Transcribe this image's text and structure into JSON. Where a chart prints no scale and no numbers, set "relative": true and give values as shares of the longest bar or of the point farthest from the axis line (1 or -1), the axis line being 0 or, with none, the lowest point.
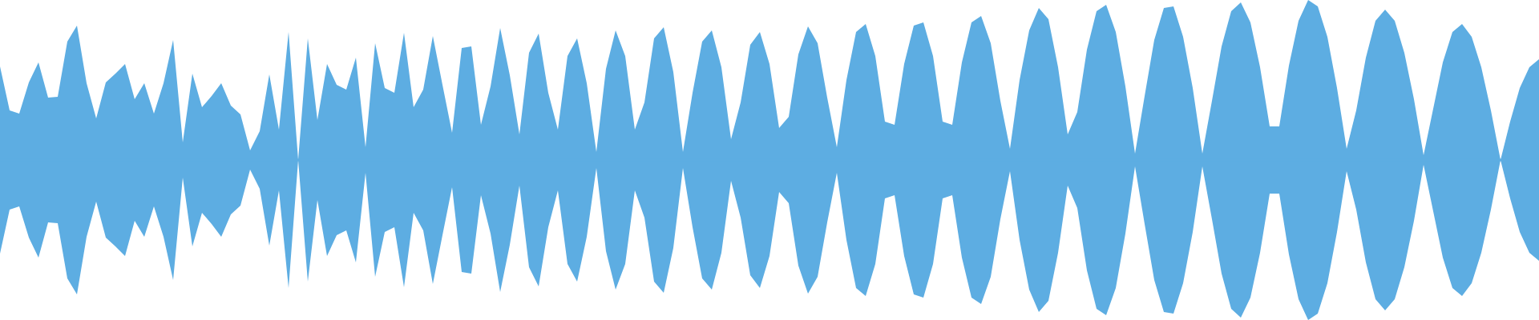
{
  "chart_data": {
    "type": "area",
    "relative": true,
    "tick_labels": false,
    "ref_lines": [
      {
        "axis": "y",
        "value": 0,
        "color": "#5dade2"
      }
    ],
    "categories": [
      null,
      null,
      null,
      null,
      null,
      null,
      null,
      null,
      null,
      null,
      null,
      null,
      null,
      null,
      null,
      null,
      null,
      null,
      null,
      null,
      null,
      null,
      null,
      null,
      null,
      null,
      null,
      null,
      null,
      null,
      null,
      null,
      null,
      null,
      null,
      null,
      null,
      null,
      null,
      null,
      null,
      null,
      null,
      null,
      null,
      null,
      null,
      null,
      null,
      null,
      null,
      null,
      null,
      null,
      null,
      null,
      null,
      null,
      null,
      null,
      null,
      null,
      null,
      null,
      null,
      null,
      null,
      null,
      null,
      null,
      null,
      null,
      null,
      null,
      null,
      null,
      null,
      null,
      null,
      null,
      null,
      null,
      null,
      null,
      null,
      null,
      null,
      null,
      null,
      null,
      null,
      null,
      null,
      null,
      null,
      null,
      null,
      null,
      null,
      null,
      null,
      null,
      null,
      null,
      null,
      null,
      null,
      null,
      null,
      null,
      null,
      null,
      null,
      null,
      null,
      null,
      null,
      null,
      null,
      null,
      null,
      null,
      null,
      null,
      null,
      null,
      null,
      null,
      null,
      null,
      null,
      null,
      null,
      null,
      null,
      null,
      null,
      null,
      null,
      null,
      null,
      null,
      null,
      null,
      null,
      null,
      null,
      null,
      null,
      null,
      null,
      null,
      null,
      null,
      null,
      null,
      null,
      null,
      null,
      null,
      null
    ],
    "series": [
      {
        "color": "#5dade2",
        "values": [
          0.585,
          0.31,
          0.29,
          0.485,
          0.61,
          0.39,
          0.395,
          0.74,
          0.84,
          0.48,
          0.26,
          0.485,
          0.54,
          0.6,
          0.38,
          0.48,
          0.29,
          0.48,
          0.75,
          0.11,
          0.54,
          0.33,
          0.4,
          0.48,
          0.34,
          0.285,
          0.06,
          0.18,
          0.535,
          0.19,
          0.8,
          0,
          0.76,
          0.25,
          0.6,
          0.47,
          0.44,
          0.64,
          0.08,
          0.73,
          0.45,
          0.42,
          0.795,
          0.33,
          0.44,
          0.775,
          0.47,
          0.17,
          0.7,
          0.71,
          0.22,
          0.46,
          0.825,
          0.53,
          0.16,
          0.67,
          0.79,
          0.42,
          0.19,
          0.65,
          0.76,
          0.48,
          0.05,
          0.57,
          0.81,
          0.65,
          0.19,
          0.36,
          0.76,
          0.83,
          0.55,
          0.05,
          0.42,
          0.74,
          0.81,
          0.58,
          0.13,
          0.36,
          0.72,
          0.8,
          0.6,
          0.2,
          0.27,
          0.66,
          0.835,
          0.73,
          0.39,
          0.08,
          0.5,
          0.8,
          0.85,
          0.65,
          0.24,
          0.22,
          0.6,
          0.84,
          0.86,
          0.65,
          0.24,
          0.22,
          0.61,
          0.86,
          0.9,
          0.73,
          0.37,
          0.07,
          0.5,
          0.81,
          0.95,
          0.88,
          0.58,
          0.16,
          0.3,
          0.69,
          0.93,
          0.97,
          0.8,
          0.46,
          0.04,
          0.4,
          0.75,
          0.95,
          0.96,
          0.77,
          0.45,
          0.04,
          0.37,
          0.71,
          0.93,
          0.985,
          0.86,
          0.58,
          0.21,
          0.21,
          0.59,
          0.87,
          1,
          0.96,
          0.77,
          0.45,
          0.07,
          0.31,
          0.64,
          0.87,
          0.94,
          0.87,
          0.67,
          0.38,
          0.03,
          0.32,
          0.61,
          0.8,
          0.85,
          0.77,
          0.58,
          0.31,
          0,
          0.24,
          0.45,
          0.58,
          0.63
        ]
      },
      {
        "color": "#5dade2",
        "values": [
          -0.585,
          -0.31,
          -0.29,
          -0.485,
          -0.61,
          -0.39,
          -0.395,
          -0.74,
          -0.84,
          -0.48,
          -0.26,
          -0.485,
          -0.54,
          -0.6,
          -0.38,
          -0.48,
          -0.29,
          -0.48,
          -0.75,
          -0.11,
          -0.54,
          -0.33,
          -0.4,
          -0.48,
          -0.34,
          -0.285,
          -0.06,
          -0.18,
          -0.535,
          -0.19,
          -0.8,
          0,
          -0.76,
          -0.25,
          -0.6,
          -0.47,
          -0.44,
          -0.64,
          -0.08,
          -0.73,
          -0.45,
          -0.42,
          -0.795,
          -0.33,
          -0.44,
          -0.775,
          -0.47,
          -0.17,
          -0.7,
          -0.71,
          -0.22,
          -0.46,
          -0.825,
          -0.53,
          -0.16,
          -0.67,
          -0.79,
          -0.42,
          -0.19,
          -0.65,
          -0.76,
          -0.48,
          -0.05,
          -0.57,
          -0.81,
          -0.65,
          -0.19,
          -0.36,
          -0.76,
          -0.83,
          -0.55,
          -0.05,
          -0.42,
          -0.74,
          -0.81,
          -0.58,
          -0.13,
          -0.36,
          -0.72,
          -0.8,
          -0.6,
          -0.2,
          -0.27,
          -0.66,
          -0.835,
          -0.73,
          -0.39,
          -0.08,
          -0.5,
          -0.8,
          -0.85,
          -0.65,
          -0.24,
          -0.22,
          -0.6,
          -0.84,
          -0.86,
          -0.65,
          -0.24,
          -0.22,
          -0.61,
          -0.86,
          -0.9,
          -0.73,
          -0.37,
          -0.07,
          -0.5,
          -0.81,
          -0.95,
          -0.88,
          -0.58,
          -0.16,
          -0.3,
          -0.69,
          -0.93,
          -0.97,
          -0.8,
          -0.46,
          -0.04,
          -0.4,
          -0.75,
          -0.95,
          -0.96,
          -0.77,
          -0.45,
          -0.04,
          -0.37,
          -0.71,
          -0.93,
          -0.985,
          -0.86,
          -0.58,
          -0.21,
          -0.21,
          -0.59,
          -0.87,
          -1,
          -0.96,
          -0.77,
          -0.45,
          -0.07,
          -0.31,
          -0.64,
          -0.87,
          -0.94,
          -0.87,
          -0.67,
          -0.38,
          -0.03,
          -0.32,
          -0.61,
          -0.8,
          -0.85,
          -0.77,
          -0.58,
          -0.31,
          0,
          -0.24,
          -0.45,
          -0.58,
          -0.63
        ]
      }
    ]
  }
}
